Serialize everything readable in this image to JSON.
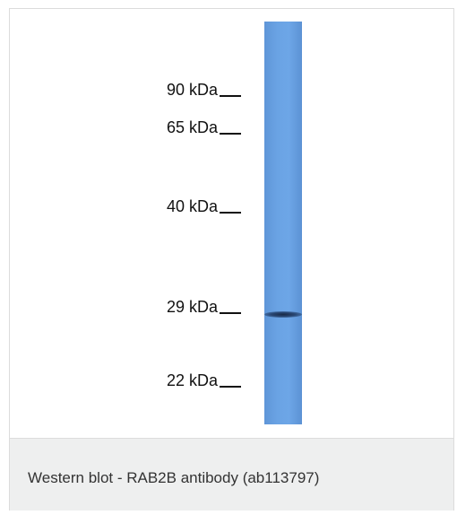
{
  "figure": {
    "markers": [
      {
        "label": "90 kDa"
      },
      {
        "label": "65 kDa"
      },
      {
        "label": "40 kDa"
      },
      {
        "label": "29 kDa"
      },
      {
        "label": "22 kDa"
      }
    ],
    "lane_color": "#6aa3e4",
    "band_color": "#1e375f",
    "caption": "Western blot - RAB2B antibody (ab113797)"
  }
}
